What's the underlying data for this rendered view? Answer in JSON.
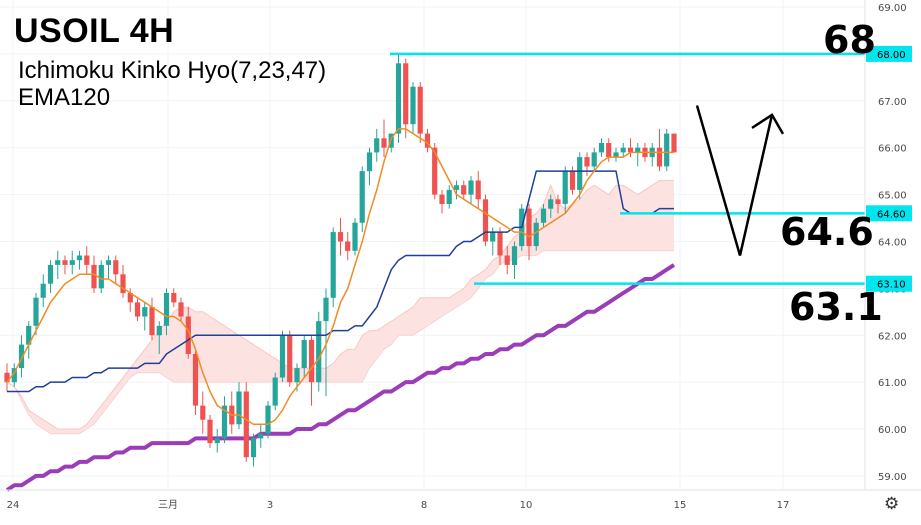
{
  "header": {
    "title": "USOIL 4H",
    "indicator_line1": "Ichimoku Kinko Hyo(7,23,47)",
    "indicator_line2": "EMA120"
  },
  "annotations": {
    "level_68": "68",
    "level_646": "64.6",
    "level_631": "63.1"
  },
  "icons": {
    "settings": "gear-icon"
  },
  "colors": {
    "up": "#26a69a",
    "down": "#ef5350",
    "tenkan": "#ef8c25",
    "kijun": "#1f3f9a",
    "ema": "#9c3cb8",
    "cloud_bear": "#fde2e2",
    "cloud_bull": "#d9efdb",
    "level_line": "#00e5ee",
    "arrow": "#000000"
  },
  "chart_data": {
    "type": "candlestick",
    "title": "USOIL 4H",
    "ylim": [
      58.7,
      69.0
    ],
    "y_ticks": [
      "59.00",
      "60.00",
      "61.00",
      "62.00",
      "63.00",
      "64.00",
      "65.00",
      "66.00",
      "67.00",
      "68.00",
      "69.00"
    ],
    "x_ticks": [
      "24",
      "三月",
      "3",
      "8",
      "10",
      "15",
      "17"
    ],
    "legend": [
      "Ichimoku Kinko Hyo(7,23,47)",
      "EMA120"
    ],
    "levels": [
      68.0,
      64.6,
      63.1
    ],
    "level_labels": [
      "68.00",
      "64.60",
      "63.10"
    ],
    "candles": [
      [
        61.2,
        61.4,
        60.8,
        61.0
      ],
      [
        61.0,
        61.4,
        60.9,
        61.3
      ],
      [
        61.3,
        62.0,
        61.1,
        61.8
      ],
      [
        61.8,
        62.3,
        61.5,
        62.2
      ],
      [
        62.2,
        62.9,
        62.0,
        62.8
      ],
      [
        62.8,
        63.3,
        62.6,
        63.1
      ],
      [
        63.1,
        63.6,
        62.9,
        63.5
      ],
      [
        63.5,
        63.8,
        63.2,
        63.6
      ],
      [
        63.6,
        63.7,
        63.3,
        63.5
      ],
      [
        63.5,
        63.8,
        63.3,
        63.6
      ],
      [
        63.6,
        63.8,
        63.4,
        63.7
      ],
      [
        63.7,
        63.9,
        63.3,
        63.5
      ],
      [
        63.5,
        63.7,
        62.9,
        63.0
      ],
      [
        63.0,
        63.6,
        62.9,
        63.5
      ],
      [
        63.5,
        63.7,
        63.2,
        63.6
      ],
      [
        63.6,
        63.7,
        63.1,
        63.3
      ],
      [
        63.3,
        63.5,
        62.8,
        62.9
      ],
      [
        62.9,
        63.0,
        62.5,
        62.7
      ],
      [
        62.7,
        62.8,
        62.3,
        62.4
      ],
      [
        62.4,
        62.7,
        62.1,
        62.6
      ],
      [
        62.6,
        62.8,
        61.9,
        62.0
      ],
      [
        62.0,
        62.3,
        61.6,
        62.2
      ],
      [
        62.2,
        63.0,
        62.0,
        62.9
      ],
      [
        62.9,
        63.0,
        62.6,
        62.7
      ],
      [
        62.7,
        62.8,
        62.3,
        62.4
      ],
      [
        62.4,
        62.6,
        61.5,
        61.6
      ],
      [
        61.6,
        61.7,
        60.3,
        60.5
      ],
      [
        60.5,
        60.8,
        59.9,
        60.2
      ],
      [
        60.2,
        60.3,
        59.6,
        59.7
      ],
      [
        59.7,
        60.0,
        59.5,
        59.8
      ],
      [
        59.8,
        60.7,
        59.7,
        60.5
      ],
      [
        60.5,
        60.8,
        59.9,
        60.1
      ],
      [
        60.1,
        61.0,
        60.0,
        60.8
      ],
      [
        60.8,
        61.0,
        59.3,
        59.4
      ],
      [
        59.4,
        59.9,
        59.2,
        59.8
      ],
      [
        59.8,
        60.1,
        59.6,
        59.9
      ],
      [
        59.9,
        60.6,
        59.8,
        60.5
      ],
      [
        60.5,
        61.2,
        60.4,
        61.1
      ],
      [
        61.1,
        62.1,
        61.0,
        62.0
      ],
      [
        62.0,
        62.1,
        60.9,
        61.0
      ],
      [
        61.0,
        61.4,
        60.8,
        61.3
      ],
      [
        61.3,
        62.0,
        61.1,
        61.9
      ],
      [
        61.9,
        62.0,
        60.5,
        61.0
      ],
      [
        61.0,
        62.5,
        60.8,
        62.3
      ],
      [
        62.3,
        63.0,
        60.7,
        62.8
      ],
      [
        62.8,
        64.3,
        62.6,
        64.2
      ],
      [
        64.2,
        64.5,
        63.7,
        64.0
      ],
      [
        64.0,
        64.2,
        63.6,
        63.8
      ],
      [
        63.8,
        64.5,
        63.7,
        64.4
      ],
      [
        64.4,
        65.6,
        64.2,
        65.5
      ],
      [
        65.5,
        66.0,
        65.2,
        65.9
      ],
      [
        65.9,
        66.4,
        65.7,
        66.2
      ],
      [
        66.2,
        66.6,
        65.8,
        66.0
      ],
      [
        66.0,
        66.3,
        65.9,
        66.3
      ],
      [
        66.3,
        68.0,
        66.1,
        67.8
      ],
      [
        67.8,
        67.9,
        66.2,
        66.5
      ],
      [
        66.5,
        67.4,
        66.3,
        67.3
      ],
      [
        67.3,
        67.4,
        66.1,
        66.3
      ],
      [
        66.3,
        66.4,
        65.9,
        66.0
      ],
      [
        66.0,
        66.1,
        64.9,
        65.0
      ],
      [
        65.0,
        65.1,
        64.6,
        64.8
      ],
      [
        64.8,
        65.2,
        64.7,
        65.1
      ],
      [
        65.1,
        65.3,
        64.9,
        65.2
      ],
      [
        65.2,
        65.3,
        64.9,
        65.0
      ],
      [
        65.0,
        65.4,
        64.8,
        65.3
      ],
      [
        65.3,
        65.5,
        64.7,
        64.9
      ],
      [
        64.9,
        65.0,
        63.9,
        64.0
      ],
      [
        64.0,
        64.3,
        63.7,
        64.2
      ],
      [
        64.2,
        64.3,
        63.5,
        63.7
      ],
      [
        63.7,
        63.9,
        63.3,
        63.5
      ],
      [
        63.5,
        64.0,
        63.2,
        63.9
      ],
      [
        63.9,
        64.8,
        63.8,
        64.7
      ],
      [
        64.7,
        64.8,
        63.6,
        63.9
      ],
      [
        63.9,
        64.5,
        63.8,
        64.4
      ],
      [
        64.4,
        64.8,
        64.3,
        64.7
      ],
      [
        64.7,
        65.0,
        64.5,
        64.9
      ],
      [
        64.9,
        65.0,
        64.6,
        64.8
      ],
      [
        64.8,
        65.6,
        64.6,
        65.5
      ],
      [
        65.5,
        65.6,
        65.0,
        65.1
      ],
      [
        65.1,
        65.9,
        64.9,
        65.8
      ],
      [
        65.8,
        65.9,
        65.4,
        65.6
      ],
      [
        65.6,
        66.0,
        65.5,
        65.9
      ],
      [
        65.9,
        66.2,
        65.8,
        66.1
      ],
      [
        66.1,
        66.2,
        65.7,
        65.8
      ],
      [
        65.8,
        66.0,
        65.7,
        65.9
      ],
      [
        65.9,
        66.1,
        65.8,
        66.0
      ],
      [
        66.0,
        66.2,
        65.8,
        65.9
      ],
      [
        65.9,
        66.1,
        65.6,
        66.0
      ],
      [
        66.0,
        66.1,
        65.7,
        65.8
      ],
      [
        65.8,
        66.1,
        65.6,
        66.0
      ],
      [
        66.0,
        66.4,
        65.5,
        65.6
      ],
      [
        65.6,
        66.4,
        65.5,
        66.3
      ],
      [
        66.3,
        66.3,
        65.9,
        65.9
      ]
    ],
    "tenkan": [
      61.0,
      61.2,
      61.5,
      61.8,
      62.1,
      62.4,
      62.7,
      62.9,
      63.1,
      63.2,
      63.3,
      63.3,
      63.3,
      63.2,
      63.2,
      63.1,
      63.0,
      62.9,
      62.8,
      62.7,
      62.6,
      62.5,
      62.4,
      62.4,
      62.3,
      62.1,
      61.7,
      61.2,
      60.8,
      60.5,
      60.4,
      60.3,
      60.3,
      60.2,
      60.1,
      60.1,
      60.1,
      60.2,
      60.4,
      60.7,
      60.9,
      61.1,
      61.3,
      61.5,
      61.8,
      62.2,
      62.7,
      63.0,
      63.5,
      64.0,
      64.6,
      65.1,
      65.7,
      66.2,
      66.4,
      66.4,
      66.3,
      66.2,
      66.1,
      65.9,
      65.6,
      65.3,
      65.0,
      64.9,
      64.8,
      64.7,
      64.6,
      64.5,
      64.4,
      64.3,
      64.2,
      64.2,
      64.1,
      64.2,
      64.3,
      64.4,
      64.5,
      64.6,
      64.8,
      65.0,
      65.3,
      65.5,
      65.7,
      65.8,
      65.8,
      65.8,
      65.9,
      65.9,
      65.9,
      65.9,
      65.9,
      65.9,
      65.9
    ],
    "kijun": [
      60.8,
      60.8,
      60.8,
      60.8,
      60.9,
      60.9,
      61.0,
      61.0,
      61.0,
      61.1,
      61.1,
      61.1,
      61.2,
      61.2,
      61.3,
      61.3,
      61.3,
      61.3,
      61.3,
      61.4,
      61.4,
      61.4,
      61.6,
      61.7,
      61.8,
      61.9,
      62.0,
      62.0,
      62.0,
      62.0,
      62.0,
      62.0,
      62.0,
      62.0,
      62.0,
      62.0,
      62.0,
      62.0,
      62.0,
      62.0,
      62.0,
      62.0,
      62.0,
      62.0,
      62.0,
      62.1,
      62.1,
      62.1,
      62.2,
      62.2,
      62.4,
      62.6,
      63.0,
      63.4,
      63.6,
      63.7,
      63.7,
      63.7,
      63.7,
      63.7,
      63.7,
      63.7,
      63.9,
      64.0,
      64.0,
      64.1,
      64.2,
      64.2,
      64.2,
      64.2,
      64.3,
      64.3,
      64.9,
      65.5,
      65.5,
      65.5,
      65.5,
      65.5,
      65.5,
      65.5,
      65.5,
      65.5,
      65.5,
      65.5,
      65.5,
      64.7,
      64.6,
      64.6,
      64.6,
      64.6,
      64.7,
      64.7,
      64.7
    ],
    "ema120": [
      58.7,
      58.8,
      58.8,
      58.9,
      59.0,
      59.0,
      59.1,
      59.1,
      59.2,
      59.2,
      59.3,
      59.3,
      59.4,
      59.4,
      59.4,
      59.5,
      59.5,
      59.6,
      59.6,
      59.6,
      59.7,
      59.7,
      59.7,
      59.7,
      59.7,
      59.7,
      59.8,
      59.8,
      59.8,
      59.8,
      59.8,
      59.8,
      59.8,
      59.8,
      59.8,
      59.9,
      59.9,
      59.9,
      59.9,
      59.9,
      60.0,
      60.0,
      60.0,
      60.1,
      60.1,
      60.2,
      60.3,
      60.4,
      60.4,
      60.5,
      60.6,
      60.7,
      60.8,
      60.8,
      60.9,
      61.0,
      61.0,
      61.1,
      61.2,
      61.2,
      61.3,
      61.3,
      61.4,
      61.4,
      61.5,
      61.5,
      61.6,
      61.6,
      61.7,
      61.7,
      61.8,
      61.8,
      61.9,
      62.0,
      62.0,
      62.1,
      62.2,
      62.2,
      62.3,
      62.4,
      62.5,
      62.5,
      62.6,
      62.7,
      62.8,
      62.9,
      63.0,
      63.1,
      63.2,
      63.2,
      63.3,
      63.4,
      63.5
    ],
    "cloud_upper": [
      61.0,
      60.9,
      60.7,
      60.4,
      60.3,
      60.2,
      60.1,
      60.0,
      60.0,
      60.0,
      60.0,
      60.1,
      60.3,
      60.5,
      60.7,
      60.9,
      61.1,
      61.3,
      61.5,
      61.7,
      61.9,
      62.1,
      62.3,
      62.5,
      62.6,
      62.6,
      62.5,
      62.5,
      62.4,
      62.3,
      62.2,
      62.1,
      62.0,
      61.9,
      61.8,
      61.7,
      61.6,
      61.5,
      61.4,
      61.3,
      61.3,
      61.3,
      61.3,
      61.3,
      61.3,
      61.4,
      61.6,
      61.7,
      61.7,
      62.0,
      62.1,
      62.1,
      62.2,
      62.3,
      62.4,
      62.5,
      62.6,
      62.8,
      62.8,
      62.8,
      62.8,
      62.8,
      62.9,
      63.0,
      63.2,
      63.3,
      63.4,
      63.6,
      63.7,
      63.9,
      64.1,
      64.2,
      64.5,
      64.6,
      64.8,
      65.2,
      64.8,
      64.7,
      64.8,
      64.9,
      65.1,
      65.2,
      65.1,
      65.0,
      65.2,
      65.2,
      65.1,
      65.0,
      65.1,
      65.2,
      65.3,
      65.3,
      65.3
    ],
    "cloud_lower": [
      61.0,
      60.9,
      60.6,
      60.3,
      60.1,
      60.0,
      59.9,
      59.9,
      59.9,
      59.9,
      59.9,
      60.0,
      60.1,
      60.3,
      60.5,
      60.7,
      60.9,
      61.1,
      61.2,
      61.2,
      61.2,
      61.2,
      61.1,
      61.0,
      61.0,
      61.0,
      61.0,
      61.0,
      61.0,
      61.0,
      61.0,
      61.0,
      61.0,
      61.0,
      61.0,
      61.0,
      61.0,
      61.0,
      61.0,
      61.0,
      61.0,
      61.0,
      61.0,
      61.0,
      61.0,
      61.0,
      61.0,
      61.0,
      61.0,
      61.0,
      61.3,
      61.5,
      61.7,
      61.8,
      62.0,
      62.0,
      62.0,
      62.1,
      62.2,
      62.3,
      62.4,
      62.5,
      62.6,
      62.7,
      62.8,
      63.0,
      63.2,
      63.3,
      63.5,
      63.6,
      63.6,
      63.7,
      63.7,
      63.7,
      63.8,
      63.8,
      63.8,
      63.8,
      63.8,
      63.8,
      63.8,
      63.8,
      63.8,
      63.8,
      63.8,
      63.8,
      63.8,
      63.8,
      63.8,
      63.8,
      63.8,
      63.8,
      63.8
    ],
    "projection_arrow": [
      [
        66.9,
        63.7,
        66.7
      ],
      [
        "15",
        "16.2",
        "17"
      ]
    ]
  }
}
